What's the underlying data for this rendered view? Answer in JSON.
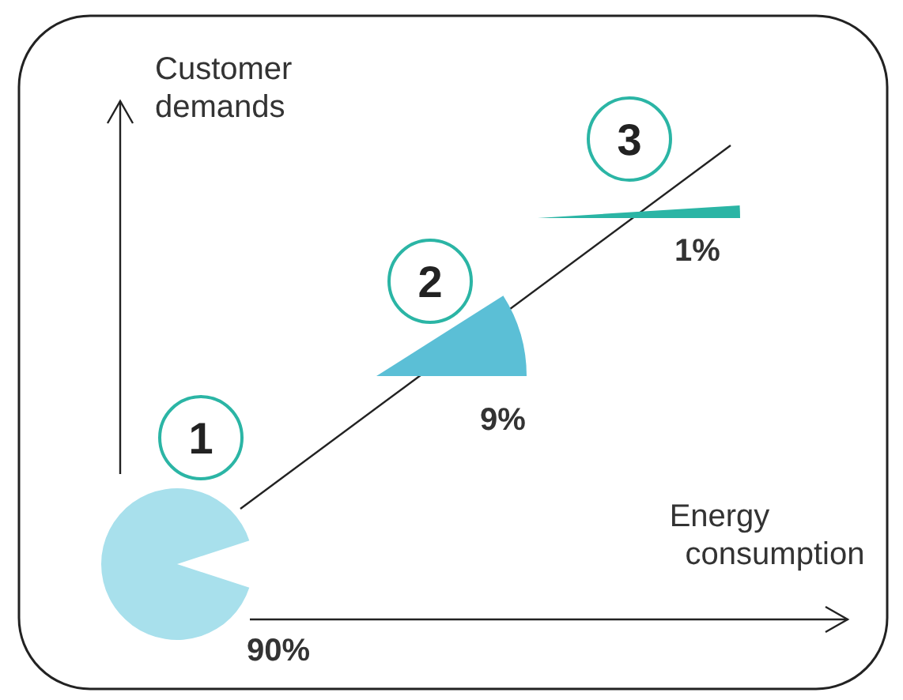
{
  "chart_data": {
    "type": "other",
    "xlabel": "Energy consumption",
    "ylabel": "Customer demands",
    "categories": [
      "1",
      "2",
      "3"
    ],
    "values": [
      90,
      9,
      1
    ],
    "value_labels": [
      "90%",
      "9%",
      "1%"
    ],
    "colors": [
      "#a8e0ec",
      "#5bbfd6",
      "#2bb5a5"
    ]
  }
}
